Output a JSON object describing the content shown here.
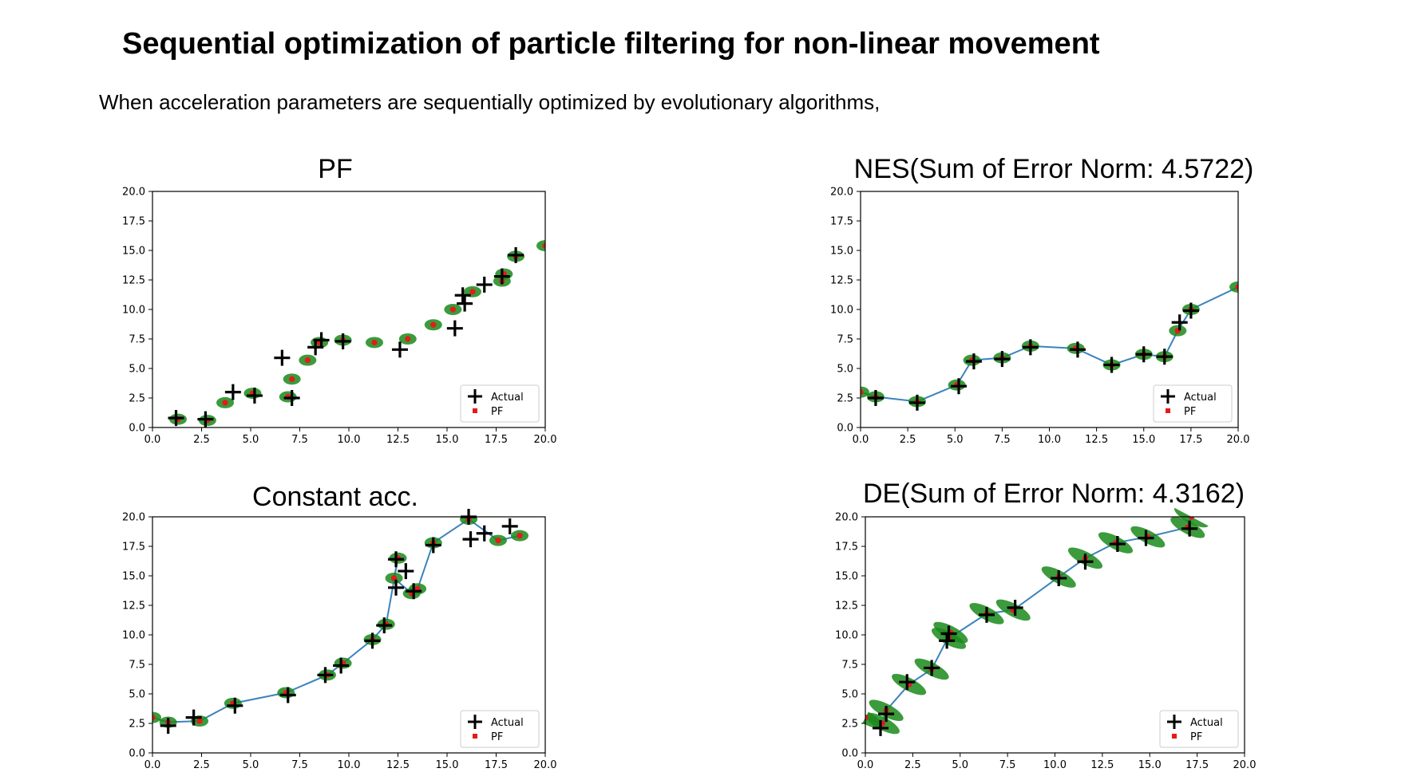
{
  "title": "Sequential optimization of particle filtering for non-linear movement",
  "subtitle": "When acceleration parameters are sequentially optimized by evolutionary algorithms,",
  "chart_data": [
    {
      "type": "scatter",
      "title": "PF",
      "xlim": [
        0,
        20
      ],
      "ylim": [
        0,
        20
      ],
      "xticks": [
        "0.0",
        "2.5",
        "5.0",
        "7.5",
        "10.0",
        "12.5",
        "15.0",
        "17.5",
        "20.0"
      ],
      "yticks": [
        "0.0",
        "2.5",
        "5.0",
        "7.5",
        "10.0",
        "12.5",
        "15.0",
        "17.5",
        "20.0"
      ],
      "legend": {
        "position": "lower-right",
        "entries": [
          "Actual",
          "PF"
        ]
      },
      "trajectory": false,
      "series": [
        {
          "name": "Actual",
          "marker": "plus",
          "color": "#000000",
          "points": [
            [
              1.2,
              0.8
            ],
            [
              2.7,
              0.7
            ],
            [
              4.1,
              3.0
            ],
            [
              5.2,
              2.7
            ],
            [
              6.6,
              5.9
            ],
            [
              7.1,
              2.5
            ],
            [
              8.3,
              6.8
            ],
            [
              8.6,
              7.4
            ],
            [
              9.7,
              7.3
            ],
            [
              12.6,
              6.6
            ],
            [
              15.4,
              8.4
            ],
            [
              15.9,
              10.5
            ],
            [
              15.8,
              11.2
            ],
            [
              16.9,
              12.1
            ],
            [
              17.8,
              12.8
            ],
            [
              18.5,
              14.6
            ]
          ]
        },
        {
          "name": "PF",
          "marker": "dot",
          "color": "#e41a1c",
          "points": [
            [
              1.3,
              0.7
            ],
            [
              2.8,
              0.6
            ],
            [
              3.7,
              2.1
            ],
            [
              5.1,
              2.9
            ],
            [
              6.9,
              2.6
            ],
            [
              7.1,
              4.1
            ],
            [
              7.9,
              5.7
            ],
            [
              8.5,
              7.2
            ],
            [
              9.7,
              7.4
            ],
            [
              11.3,
              7.2
            ],
            [
              13.0,
              7.5
            ],
            [
              14.3,
              8.7
            ],
            [
              15.3,
              10.0
            ],
            [
              16.3,
              11.5
            ],
            [
              17.8,
              12.4
            ],
            [
              17.9,
              13.0
            ],
            [
              18.5,
              14.5
            ],
            [
              20.0,
              15.4
            ]
          ]
        }
      ]
    },
    {
      "type": "line",
      "title": "NES(Sum of Error Norm: 4.5722)",
      "xlim": [
        0,
        20
      ],
      "ylim": [
        0,
        20
      ],
      "xticks": [
        "0.0",
        "2.5",
        "5.0",
        "7.5",
        "10.0",
        "12.5",
        "15.0",
        "17.5",
        "20.0"
      ],
      "yticks": [
        "0.0",
        "2.5",
        "5.0",
        "7.5",
        "10.0",
        "12.5",
        "15.0",
        "17.5",
        "20.0"
      ],
      "legend": {
        "position": "lower-right",
        "entries": [
          "Actual",
          "PF"
        ]
      },
      "trajectory": true,
      "series": [
        {
          "name": "Actual",
          "marker": "plus",
          "color": "#000000",
          "points": [
            [
              0.8,
              2.5
            ],
            [
              3.0,
              2.1
            ],
            [
              5.2,
              3.5
            ],
            [
              6.0,
              5.6
            ],
            [
              7.5,
              5.8
            ],
            [
              9.0,
              6.8
            ],
            [
              11.5,
              6.6
            ],
            [
              13.3,
              5.3
            ],
            [
              15.0,
              6.2
            ],
            [
              16.1,
              6.0
            ],
            [
              16.9,
              8.9
            ],
            [
              17.5,
              9.9
            ]
          ]
        },
        {
          "name": "PF",
          "marker": "dot",
          "color": "#e41a1c",
          "points": [
            [
              0.0,
              3.0
            ],
            [
              0.8,
              2.6
            ],
            [
              3.0,
              2.2
            ],
            [
              5.1,
              3.6
            ],
            [
              5.9,
              5.7
            ],
            [
              7.5,
              5.9
            ],
            [
              9.0,
              6.9
            ],
            [
              11.4,
              6.7
            ],
            [
              13.3,
              5.3
            ],
            [
              15.0,
              6.2
            ],
            [
              16.1,
              6.0
            ],
            [
              16.8,
              8.2
            ],
            [
              17.5,
              10.0
            ],
            [
              20.0,
              11.9
            ]
          ]
        }
      ]
    },
    {
      "type": "line",
      "title": "Constant acc.",
      "xlim": [
        0,
        20
      ],
      "ylim": [
        0,
        20
      ],
      "xticks": [
        "0.0",
        "2.5",
        "5.0",
        "7.5",
        "10.0",
        "12.5",
        "15.0",
        "17.5",
        "20.0"
      ],
      "yticks": [
        "0.0",
        "2.5",
        "5.0",
        "7.5",
        "10.0",
        "12.5",
        "15.0",
        "17.5",
        "20.0"
      ],
      "legend": {
        "position": "lower-right",
        "entries": [
          "Actual",
          "PF"
        ]
      },
      "trajectory": true,
      "series": [
        {
          "name": "Actual",
          "marker": "plus",
          "color": "#000000",
          "points": [
            [
              0.8,
              2.3
            ],
            [
              2.1,
              3.0
            ],
            [
              4.2,
              4.0
            ],
            [
              6.9,
              4.9
            ],
            [
              8.8,
              6.6
            ],
            [
              9.6,
              7.4
            ],
            [
              11.2,
              9.5
            ],
            [
              11.8,
              10.8
            ],
            [
              12.4,
              16.4
            ],
            [
              12.9,
              15.4
            ],
            [
              12.4,
              14.0
            ],
            [
              13.3,
              13.7
            ],
            [
              14.3,
              17.6
            ],
            [
              16.1,
              20.0
            ],
            [
              16.2,
              18.1
            ],
            [
              16.9,
              18.6
            ],
            [
              18.2,
              19.2
            ]
          ]
        },
        {
          "name": "PF",
          "marker": "dot",
          "color": "#e41a1c",
          "points": [
            [
              0.0,
              3.0
            ],
            [
              0.8,
              2.6
            ],
            [
              2.4,
              2.7
            ],
            [
              4.1,
              4.2
            ],
            [
              6.8,
              5.1
            ],
            [
              8.9,
              6.6
            ],
            [
              9.7,
              7.6
            ],
            [
              11.2,
              9.6
            ],
            [
              11.9,
              10.9
            ],
            [
              12.5,
              16.5
            ],
            [
              12.3,
              14.8
            ],
            [
              13.2,
              13.5
            ],
            [
              13.5,
              13.9
            ],
            [
              14.3,
              17.8
            ],
            [
              16.1,
              19.8
            ],
            [
              17.6,
              18.0
            ],
            [
              18.7,
              18.4
            ]
          ]
        }
      ]
    },
    {
      "type": "line",
      "title": "DE(Sum of Error Norm: 4.3162)",
      "xlim": [
        0,
        20
      ],
      "ylim": [
        0,
        20
      ],
      "xticks": [
        "0.0",
        "2.5",
        "5.0",
        "7.5",
        "10.0",
        "12.5",
        "15.0",
        "17.5",
        "20.0"
      ],
      "yticks": [
        "0.0",
        "2.5",
        "5.0",
        "7.5",
        "10.0",
        "12.5",
        "15.0",
        "17.5",
        "20.0"
      ],
      "legend": {
        "position": "lower-right",
        "entries": [
          "Actual",
          "PF"
        ]
      },
      "trajectory": true,
      "series": [
        {
          "name": "Actual",
          "marker": "plus",
          "color": "#000000",
          "points": [
            [
              0.8,
              2.1
            ],
            [
              1.1,
              3.3
            ],
            [
              2.2,
              6.0
            ],
            [
              3.5,
              7.2
            ],
            [
              4.4,
              10.1
            ],
            [
              4.3,
              9.5
            ],
            [
              6.4,
              11.7
            ],
            [
              7.9,
              12.3
            ],
            [
              10.2,
              14.8
            ],
            [
              11.6,
              16.2
            ],
            [
              13.3,
              17.7
            ],
            [
              14.8,
              18.2
            ],
            [
              17.1,
              19.0
            ]
          ]
        },
        {
          "name": "PF",
          "marker": "dot",
          "color": "#e41a1c",
          "points": [
            [
              0.0,
              3.0
            ],
            [
              0.9,
              2.5
            ],
            [
              1.1,
              3.6
            ],
            [
              2.3,
              5.8
            ],
            [
              3.5,
              7.1
            ],
            [
              4.5,
              10.2
            ],
            [
              4.4,
              9.7
            ],
            [
              6.4,
              11.8
            ],
            [
              7.8,
              12.1
            ],
            [
              10.2,
              14.9
            ],
            [
              11.6,
              16.5
            ],
            [
              13.2,
              17.8
            ],
            [
              14.9,
              18.3
            ],
            [
              17.0,
              19.1
            ],
            [
              17.2,
              20.0
            ]
          ]
        }
      ]
    }
  ]
}
